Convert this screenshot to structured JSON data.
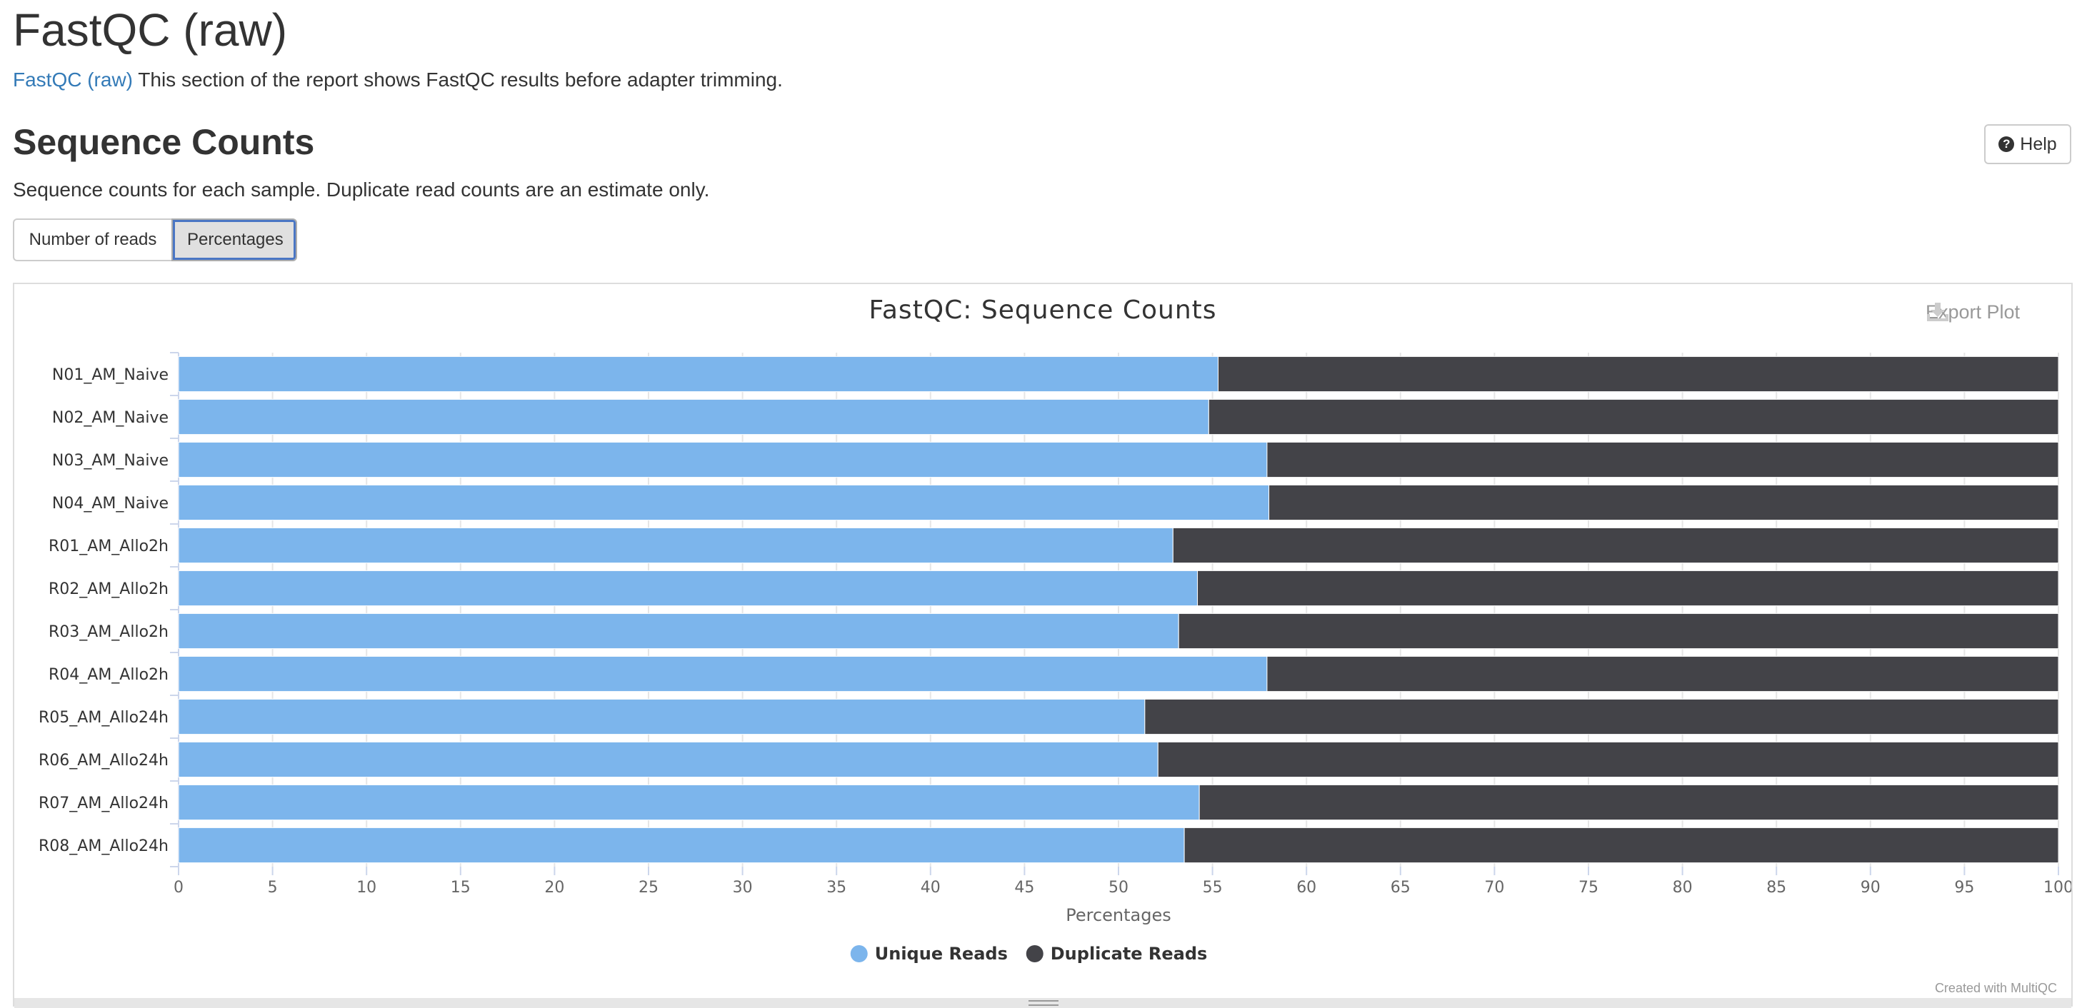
{
  "page": {
    "title": "FastQC (raw)",
    "intro_link": "FastQC (raw)",
    "intro_text": " This section of the report shows FastQC results before adapter trimming."
  },
  "section": {
    "title": "Sequence Counts",
    "description": "Sequence counts for each sample. Duplicate read counts are an estimate only.",
    "help_label": "Help",
    "help_icon": "question-circle-icon"
  },
  "toggle": {
    "buttons": [
      "Number of reads",
      "Percentages"
    ],
    "active": "Percentages"
  },
  "plot": {
    "export_label": "Export Plot",
    "export_icon": "download-icon",
    "credit": "Created with MultiQC"
  },
  "chart_data": {
    "type": "bar",
    "orientation": "horizontal",
    "stacked": true,
    "title": "FastQC: Sequence Counts",
    "xlabel": "Percentages",
    "ylabel": "",
    "xlim": [
      0,
      100
    ],
    "x_ticks": [
      0,
      5,
      10,
      15,
      20,
      25,
      30,
      35,
      40,
      45,
      50,
      55,
      60,
      65,
      70,
      75,
      80,
      85,
      90,
      95,
      100
    ],
    "grid": true,
    "legend_position": "bottom-center",
    "categories": [
      "N01_AM_Naive",
      "N02_AM_Naive",
      "N03_AM_Naive",
      "N04_AM_Naive",
      "R01_AM_Allo2h",
      "R02_AM_Allo2h",
      "R03_AM_Allo2h",
      "R04_AM_Allo2h",
      "R05_AM_Allo24h",
      "R06_AM_Allo24h",
      "R07_AM_Allo24h",
      "R08_AM_Allo24h"
    ],
    "series": [
      {
        "name": "Unique Reads",
        "color": "#7cb5ec",
        "values": [
          55.3,
          54.8,
          57.9,
          58.0,
          52.9,
          54.2,
          53.2,
          57.9,
          51.4,
          52.1,
          54.3,
          53.5
        ]
      },
      {
        "name": "Duplicate Reads",
        "color": "#434348",
        "values": [
          44.7,
          45.2,
          42.1,
          42.0,
          47.1,
          45.8,
          46.8,
          42.1,
          48.6,
          47.9,
          45.7,
          46.5
        ]
      }
    ]
  }
}
